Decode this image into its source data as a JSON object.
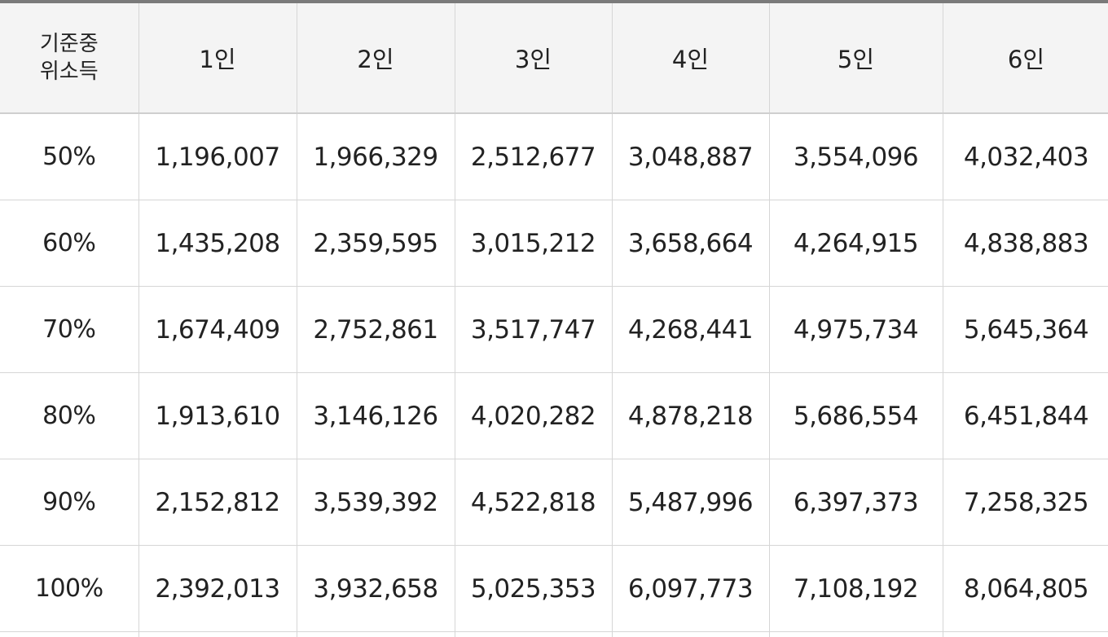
{
  "table": {
    "corner_label_line1": "기준중",
    "corner_label_line2": "위소득",
    "columns": [
      "1인",
      "2인",
      "3인",
      "4인",
      "5인",
      "6인"
    ],
    "rows": [
      {
        "label": "50%",
        "values": [
          "1,196,007",
          "1,966,329",
          "2,512,677",
          "3,048,887",
          "3,554,096",
          "4,032,403"
        ]
      },
      {
        "label": "60%",
        "values": [
          "1,435,208",
          "2,359,595",
          "3,015,212",
          "3,658,664",
          "4,264,915",
          "4,838,883"
        ]
      },
      {
        "label": "70%",
        "values": [
          "1,674,409",
          "2,752,861",
          "3,517,747",
          "4,268,441",
          "4,975,734",
          "5,645,364"
        ]
      },
      {
        "label": "80%",
        "values": [
          "1,913,610",
          "3,146,126",
          "4,020,282",
          "4,878,218",
          "5,686,554",
          "6,451,844"
        ]
      },
      {
        "label": "90%",
        "values": [
          "2,152,812",
          "3,539,392",
          "4,522,818",
          "5,487,996",
          "6,397,373",
          "7,258,325"
        ]
      },
      {
        "label": "100%",
        "values": [
          "2,392,013",
          "3,932,658",
          "5,025,353",
          "6,097,773",
          "7,108,192",
          "8,064,805"
        ]
      }
    ]
  }
}
